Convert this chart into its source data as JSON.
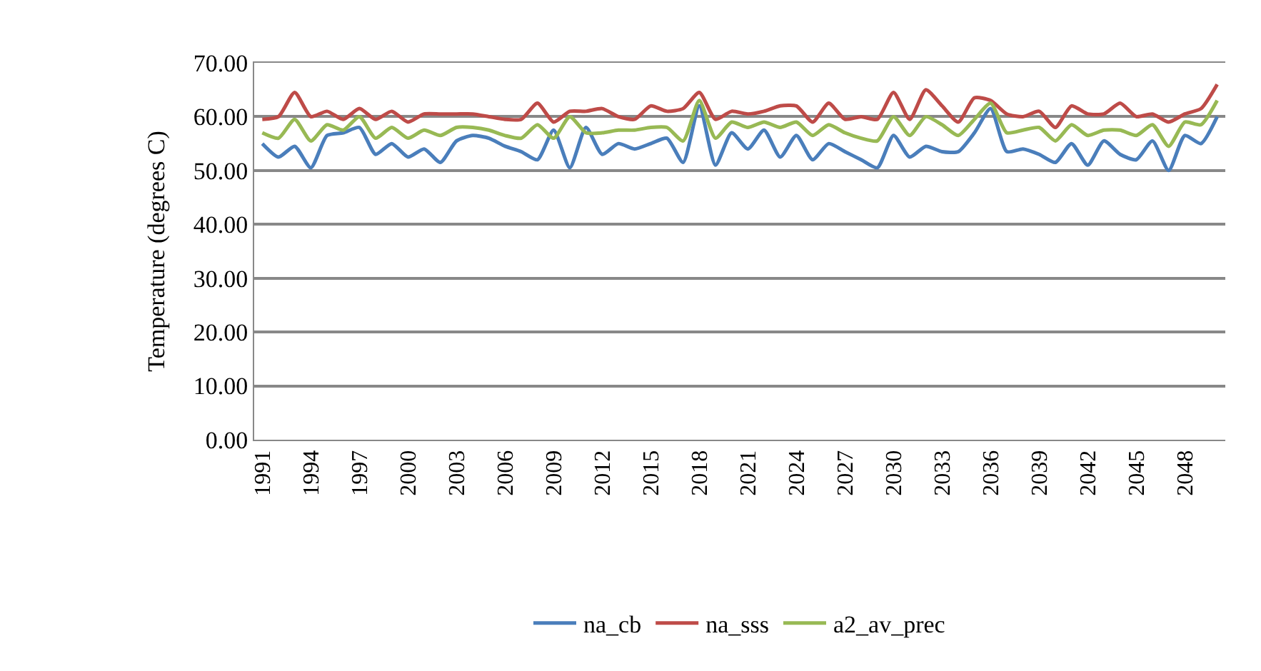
{
  "chart_data": {
    "type": "line",
    "ylabel": "Temperature (degrees C)",
    "categories": [
      "1991",
      null,
      null,
      "1994",
      null,
      null,
      "1997",
      null,
      null,
      "2000",
      null,
      null,
      "2003",
      null,
      null,
      "2006",
      null,
      null,
      "2009",
      null,
      null,
      "2012",
      null,
      null,
      "2015",
      null,
      null,
      "2018",
      null,
      null,
      "2021",
      null,
      null,
      "2024",
      null,
      null,
      "2027",
      null,
      null,
      "2030",
      null,
      null,
      "2033",
      null,
      null,
      "2036",
      null,
      null,
      "2039",
      null,
      null,
      "2042",
      null,
      null,
      "2045",
      null,
      null,
      "2048",
      null,
      null
    ],
    "ylim": [
      0,
      70
    ],
    "yticks": [
      {
        "value": 0,
        "label": "0.00"
      },
      {
        "value": 10,
        "label": "10.00"
      },
      {
        "value": 20,
        "label": "20.00"
      },
      {
        "value": 30,
        "label": "30.00"
      },
      {
        "value": 40,
        "label": "40.00"
      },
      {
        "value": 50,
        "label": "50.00"
      },
      {
        "value": 60,
        "label": "60.00"
      },
      {
        "value": 70,
        "label": "70.00"
      }
    ],
    "grid": "y",
    "legend": "bottom",
    "marker": "none",
    "line_style": "solid",
    "series": [
      {
        "name": "na_cb",
        "color": "#4a7ebb",
        "values": [
          55,
          52.5,
          54.5,
          50.5,
          56.5,
          57,
          58,
          53,
          55,
          52.5,
          54,
          51.5,
          55.5,
          56.5,
          56,
          54.5,
          53.5,
          52,
          57.5,
          50.5,
          58,
          53,
          55,
          54,
          55,
          56,
          51.5,
          62,
          51,
          57,
          54,
          57.5,
          52.5,
          56.5,
          52,
          55,
          53.5,
          52,
          50.5,
          56.5,
          52.5,
          54.5,
          53.5,
          53.5,
          57,
          61.5,
          53.5,
          54,
          53,
          51.5,
          55,
          51,
          55.5,
          53,
          52,
          55.5,
          50,
          56.5,
          55,
          60
        ]
      },
      {
        "name": "na_sss",
        "color": "#be4b48",
        "values": [
          59.5,
          60,
          64.5,
          60,
          61,
          59.5,
          61.5,
          59.5,
          61,
          59,
          60.5,
          60.5,
          60.5,
          60.5,
          60,
          59.5,
          59.5,
          62.5,
          59,
          61,
          61,
          61.5,
          60,
          59.5,
          62,
          61,
          61.5,
          64.5,
          59.5,
          61,
          60.5,
          61,
          62,
          62,
          59,
          62.5,
          59.5,
          60,
          59.5,
          64.5,
          59.5,
          65,
          62,
          59,
          63.5,
          63,
          60.5,
          60,
          61,
          58,
          62,
          60.5,
          60.5,
          62.5,
          60,
          60.5,
          59,
          60.5,
          61.5,
          66
        ]
      },
      {
        "name": "a2_av_prec",
        "color": "#98b954",
        "values": [
          57,
          56,
          59.5,
          55.5,
          58.5,
          57.5,
          60,
          56,
          58,
          56,
          57.5,
          56.5,
          58,
          58,
          57.5,
          56.5,
          56,
          58.5,
          56,
          60,
          57,
          57,
          57.5,
          57.5,
          58,
          58,
          55.5,
          63,
          56,
          59,
          58,
          59,
          58,
          59,
          56.5,
          58.5,
          57,
          56,
          55.5,
          60,
          56.5,
          60,
          58.5,
          56.5,
          59.5,
          62.5,
          57,
          57.5,
          58,
          55.5,
          58.5,
          56.5,
          57.5,
          57.5,
          56.5,
          58.5,
          54.5,
          59,
          58.5,
          63
        ]
      }
    ]
  }
}
